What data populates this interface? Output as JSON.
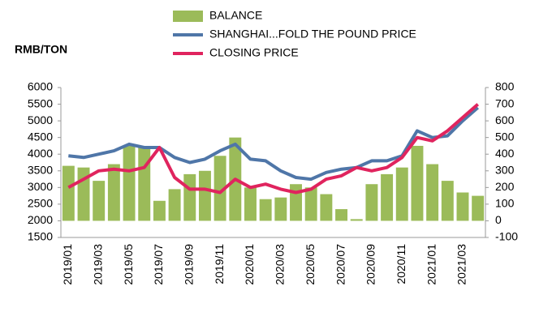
{
  "chart_data": {
    "type": "bar-line",
    "y_label": "RMB/TON",
    "legend": "top",
    "categories": [
      "2019/01",
      null,
      "2019/03",
      null,
      "2019/05",
      null,
      "2019/07",
      null,
      "2019/09",
      null,
      "2019/11",
      null,
      "2020/01",
      null,
      "2020/03",
      null,
      "2020/05",
      null,
      "2020/07",
      null,
      "2020/09",
      null,
      "2020/11",
      null,
      "2021/01",
      null,
      "2021/03",
      null
    ],
    "series": [
      {
        "name": "BALANCE",
        "type": "bar",
        "axis": "y2",
        "color": "#9bbb59",
        "values": [
          330,
          320,
          240,
          340,
          450,
          440,
          120,
          190,
          280,
          300,
          390,
          500,
          200,
          130,
          140,
          220,
          200,
          160,
          70,
          10,
          220,
          280,
          320,
          450,
          340,
          240,
          170,
          150
        ]
      },
      {
        "name": "SHANGHAI...FOLD THE POUND PRICE",
        "type": "line",
        "color": "#4f76a8",
        "values": [
          3950,
          3900,
          4000,
          4100,
          4300,
          4200,
          4200,
          3900,
          3750,
          3850,
          4100,
          4300,
          3850,
          3800,
          3500,
          3300,
          3250,
          3450,
          3550,
          3600,
          3800,
          3800,
          3950,
          4700,
          4500,
          4550,
          5000,
          5400
        ]
      },
      {
        "name": "CLOSING PRICE",
        "type": "line",
        "color": "#e0245e",
        "values": [
          3000,
          3250,
          3500,
          3550,
          3500,
          3600,
          4200,
          3300,
          2950,
          2950,
          2850,
          3250,
          3000,
          3100,
          2950,
          2850,
          2950,
          3250,
          3350,
          3600,
          3500,
          3600,
          3900,
          4500,
          4400,
          4700,
          5100,
          5500
        ]
      }
    ],
    "ylim": [
      1500,
      6000
    ],
    "yticks": [
      1500,
      2000,
      2500,
      3000,
      3500,
      4000,
      4500,
      5000,
      5500,
      6000
    ],
    "y2lim": [
      -100,
      800
    ],
    "y2ticks": [
      -100,
      0,
      100,
      200,
      300,
      400,
      500,
      600,
      700,
      800
    ]
  }
}
